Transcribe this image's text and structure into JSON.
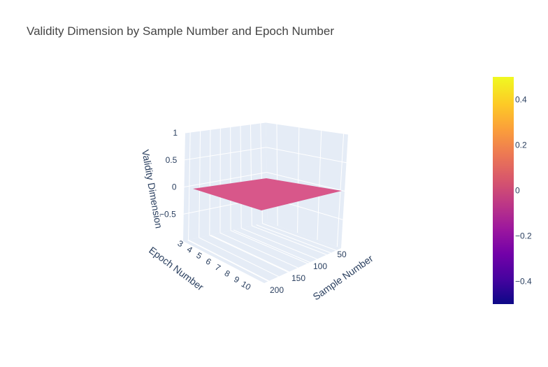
{
  "chart_data": {
    "type": "surface",
    "title": "Validity Dimension by Sample Number and Epoch Number",
    "x_axis": {
      "title": "Sample Number",
      "ticks": [
        "50",
        "100",
        "150",
        "200"
      ],
      "range": [
        25,
        210
      ]
    },
    "y_axis": {
      "title": "Epoch Number",
      "ticks": [
        "3",
        "4",
        "5",
        "6",
        "7",
        "8",
        "9",
        "10"
      ],
      "range": [
        3,
        10.5
      ]
    },
    "z_axis": {
      "title": "Validity Dimension",
      "ticks": [
        "1",
        "0.5",
        "0",
        "−0.5"
      ],
      "range": [
        -1,
        1
      ]
    },
    "x": [
      25,
      210
    ],
    "y": [
      3,
      10.5
    ],
    "z": [
      [
        0,
        0
      ],
      [
        0,
        0
      ]
    ],
    "surface_color": "#d8578a",
    "colorscale": "plasma",
    "colorbar": {
      "range": [
        -0.5,
        0.5
      ],
      "ticks": [
        "0.4",
        "0.2",
        "0",
        "−0.2",
        "−0.4"
      ]
    },
    "scene_background": "#e5ecf6",
    "grid": true
  }
}
